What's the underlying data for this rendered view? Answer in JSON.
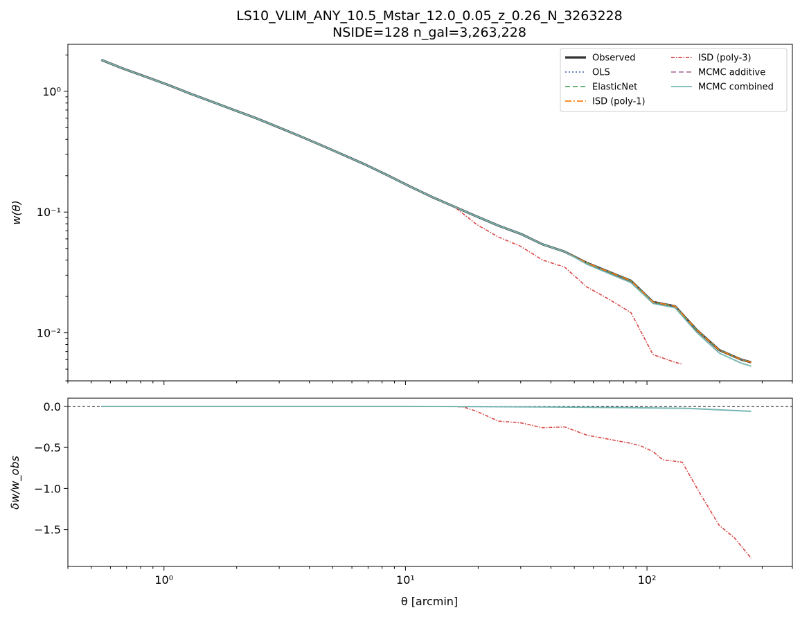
{
  "title": "LS10_VLIM_ANY_10.5_Mstar_12.0_0.05_z_0.26_N_3263228",
  "subtitle": "NSIDE=128  n_gal=3,263,228",
  "xlabel": "θ [arcmin]",
  "chart_data": [
    {
      "type": "line",
      "panel": "top",
      "ylabel": "w(θ)",
      "xscale": "log",
      "yscale": "log",
      "xlim": [
        0.4,
        400
      ],
      "ylim": [
        0.004,
        2.45
      ],
      "x_ticks": [
        1,
        10,
        100
      ],
      "x_tick_labels": [
        "10⁰",
        "10¹",
        "10²"
      ],
      "y_ticks": [
        0.01,
        0.1,
        1
      ],
      "y_tick_labels": [
        "10⁻²",
        "10⁻¹",
        "10⁰"
      ],
      "legend": {
        "placement": "top-right",
        "columns": 2
      },
      "series": [
        {
          "name": "Observed",
          "color": "#333333",
          "dash": "solid",
          "width": 3.2,
          "x": [
            0.55,
            0.68,
            0.84,
            1.04,
            1.28,
            1.58,
            1.95,
            2.4,
            2.97,
            3.66,
            4.52,
            5.58,
            6.89,
            8.5,
            10.5,
            12.9,
            15.9,
            19.7,
            24.3,
            30.0,
            37.0,
            45.6,
            56.3,
            69.5,
            85.8,
            105.9,
            130.7,
            161.3,
            199.2,
            245.8,
            270.0
          ],
          "y": [
            1.82,
            1.54,
            1.32,
            1.13,
            0.96,
            0.82,
            0.7,
            0.6,
            0.505,
            0.425,
            0.355,
            0.295,
            0.245,
            0.2,
            0.162,
            0.133,
            0.111,
            0.092,
            0.077,
            0.066,
            0.054,
            0.047,
            0.038,
            0.032,
            0.027,
            0.018,
            0.0166,
            0.0105,
            0.0072,
            0.006,
            0.0057
          ]
        },
        {
          "name": "OLS",
          "color": "#4c72b0",
          "dash": "2,3",
          "width": 1.6,
          "x": [
            0.55,
            0.68,
            0.84,
            1.04,
            1.28,
            1.58,
            1.95,
            2.4,
            2.97,
            3.66,
            4.52,
            5.58,
            6.89,
            8.5,
            10.5,
            12.9,
            15.9,
            19.7,
            24.3,
            30.0,
            37.0,
            45.6,
            56.3,
            69.5,
            85.8,
            105.9,
            130.7,
            161.3,
            199.2,
            245.8,
            270.0
          ],
          "y": [
            1.82,
            1.54,
            1.32,
            1.13,
            0.96,
            0.82,
            0.7,
            0.6,
            0.505,
            0.425,
            0.355,
            0.295,
            0.245,
            0.2,
            0.162,
            0.133,
            0.111,
            0.092,
            0.077,
            0.066,
            0.054,
            0.047,
            0.038,
            0.032,
            0.027,
            0.018,
            0.0166,
            0.0105,
            0.0072,
            0.006,
            0.0057
          ]
        },
        {
          "name": "ElasticNet",
          "color": "#55a868",
          "dash": "7,4",
          "width": 1.6,
          "x": [
            0.55,
            0.68,
            0.84,
            1.04,
            1.28,
            1.58,
            1.95,
            2.4,
            2.97,
            3.66,
            4.52,
            5.58,
            6.89,
            8.5,
            10.5,
            12.9,
            15.9,
            19.7,
            24.3,
            30.0,
            37.0,
            45.6,
            56.3,
            69.5,
            85.8,
            105.9,
            130.7,
            161.3,
            199.2,
            245.8,
            270.0
          ],
          "y": [
            1.82,
            1.54,
            1.32,
            1.13,
            0.96,
            0.82,
            0.7,
            0.6,
            0.505,
            0.425,
            0.355,
            0.295,
            0.245,
            0.2,
            0.162,
            0.133,
            0.111,
            0.092,
            0.077,
            0.066,
            0.054,
            0.047,
            0.038,
            0.032,
            0.027,
            0.018,
            0.0166,
            0.0105,
            0.0072,
            0.006,
            0.0057
          ]
        },
        {
          "name": "ISD (poly-1)",
          "color": "#ff7f0e",
          "dash": "9,3,2,3",
          "width": 1.6,
          "x": [
            0.55,
            0.68,
            0.84,
            1.04,
            1.28,
            1.58,
            1.95,
            2.4,
            2.97,
            3.66,
            4.52,
            5.58,
            6.89,
            8.5,
            10.5,
            12.9,
            15.9,
            19.7,
            24.3,
            30.0,
            37.0,
            45.6,
            56.3,
            69.5,
            85.8,
            105.9,
            130.7,
            161.3,
            199.2,
            245.8,
            270.0
          ],
          "y": [
            1.82,
            1.54,
            1.32,
            1.13,
            0.96,
            0.82,
            0.7,
            0.6,
            0.505,
            0.425,
            0.355,
            0.295,
            0.245,
            0.2,
            0.162,
            0.133,
            0.111,
            0.092,
            0.077,
            0.066,
            0.054,
            0.047,
            0.038,
            0.032,
            0.027,
            0.018,
            0.0166,
            0.0105,
            0.0072,
            0.006,
            0.0057
          ]
        },
        {
          "name": "ISD (poly-3)",
          "color": "#d94545",
          "dash": "5,2,1.5,2",
          "width": 1.6,
          "x": [
            0.55,
            0.68,
            0.84,
            1.04,
            1.28,
            1.58,
            1.95,
            2.4,
            2.97,
            3.66,
            4.52,
            5.58,
            6.89,
            8.5,
            10.5,
            12.9,
            15.9,
            19.7,
            24.3,
            30.0,
            37.0,
            45.6,
            56.3,
            69.5,
            85.8,
            105.9,
            130.7,
            140.0
          ],
          "y": [
            1.82,
            1.54,
            1.32,
            1.13,
            0.96,
            0.82,
            0.7,
            0.6,
            0.505,
            0.425,
            0.355,
            0.295,
            0.245,
            0.2,
            0.162,
            0.133,
            0.111,
            0.079,
            0.062,
            0.052,
            0.04,
            0.035,
            0.024,
            0.019,
            0.0147,
            0.0066,
            0.0057,
            0.0055
          ]
        },
        {
          "name": "MCMC additive",
          "color": "#b07aa1",
          "dash": "7,4",
          "width": 1.6,
          "x": [
            0.55,
            0.68,
            0.84,
            1.04,
            1.28,
            1.58,
            1.95,
            2.4,
            2.97,
            3.66,
            4.52,
            5.58,
            6.89,
            8.5,
            10.5,
            12.9,
            15.9,
            19.7,
            24.3,
            30.0,
            37.0,
            45.6,
            56.3,
            69.5,
            85.8,
            105.9,
            130.7,
            161.3,
            199.2,
            245.8,
            270.0
          ],
          "y": [
            1.82,
            1.54,
            1.32,
            1.13,
            0.96,
            0.82,
            0.7,
            0.6,
            0.505,
            0.425,
            0.355,
            0.295,
            0.245,
            0.2,
            0.162,
            0.133,
            0.111,
            0.092,
            0.077,
            0.066,
            0.054,
            0.047,
            0.037,
            0.031,
            0.026,
            0.0175,
            0.0161,
            0.01,
            0.0068,
            0.0056,
            0.0053
          ]
        },
        {
          "name": "MCMC combined",
          "color": "#76b7b2",
          "dash": "solid",
          "width": 1.8,
          "x": [
            0.55,
            0.68,
            0.84,
            1.04,
            1.28,
            1.58,
            1.95,
            2.4,
            2.97,
            3.66,
            4.52,
            5.58,
            6.89,
            8.5,
            10.5,
            12.9,
            15.9,
            19.7,
            24.3,
            30.0,
            37.0,
            45.6,
            56.3,
            69.5,
            85.8,
            105.9,
            130.7,
            161.3,
            199.2,
            245.8,
            270.0
          ],
          "y": [
            1.82,
            1.54,
            1.32,
            1.13,
            0.96,
            0.82,
            0.7,
            0.6,
            0.505,
            0.425,
            0.355,
            0.295,
            0.245,
            0.2,
            0.162,
            0.133,
            0.111,
            0.092,
            0.077,
            0.066,
            0.054,
            0.047,
            0.037,
            0.031,
            0.026,
            0.0175,
            0.0161,
            0.01,
            0.0068,
            0.0056,
            0.0053
          ]
        }
      ]
    },
    {
      "type": "line",
      "panel": "bottom",
      "ylabel": "δw/w_obs",
      "xscale": "log",
      "yscale": "linear",
      "xlim": [
        0.4,
        400
      ],
      "ylim": [
        -1.95,
        0.1
      ],
      "y_ticks": [
        0.0,
        -0.5,
        -1.0,
        -1.5
      ],
      "y_tick_labels": [
        "0.0",
        "−0.5",
        "−1.0",
        "−1.5"
      ],
      "reference_line": 0,
      "series": [
        {
          "name": "ISD (poly-3)",
          "color": "#d94545",
          "dash": "5,2,1.5,2",
          "width": 1.6,
          "x": [
            0.55,
            1.0,
            5.0,
            10.0,
            15.9,
            17.5,
            19.7,
            24.3,
            30.0,
            37.0,
            45.6,
            56.3,
            69.5,
            85.8,
            94.0,
            105.9,
            116.0,
            140.0,
            165.0,
            199.2,
            230.0,
            270.0
          ],
          "y": [
            0,
            0,
            0,
            0,
            0,
            -0.01,
            -0.06,
            -0.18,
            -0.2,
            -0.26,
            -0.25,
            -0.35,
            -0.4,
            -0.45,
            -0.48,
            -0.55,
            -0.65,
            -0.68,
            -1.05,
            -1.45,
            -1.6,
            -1.85
          ]
        },
        {
          "name": "OLS",
          "color": "#4c72b0",
          "dash": "2,3",
          "width": 1.6,
          "x": [
            0.55,
            10.0,
            20.0,
            40.0,
            80.0,
            150.0,
            270.0
          ],
          "y": [
            0,
            0,
            -0.003,
            -0.008,
            -0.015,
            -0.025,
            -0.06
          ]
        },
        {
          "name": "MCMC combined",
          "color": "#76b7b2",
          "dash": "solid",
          "width": 2.0,
          "x": [
            0.55,
            10.0,
            20.0,
            40.0,
            80.0,
            150.0,
            270.0
          ],
          "y": [
            0,
            0,
            -0.003,
            -0.008,
            -0.015,
            -0.025,
            -0.06
          ]
        }
      ]
    }
  ]
}
